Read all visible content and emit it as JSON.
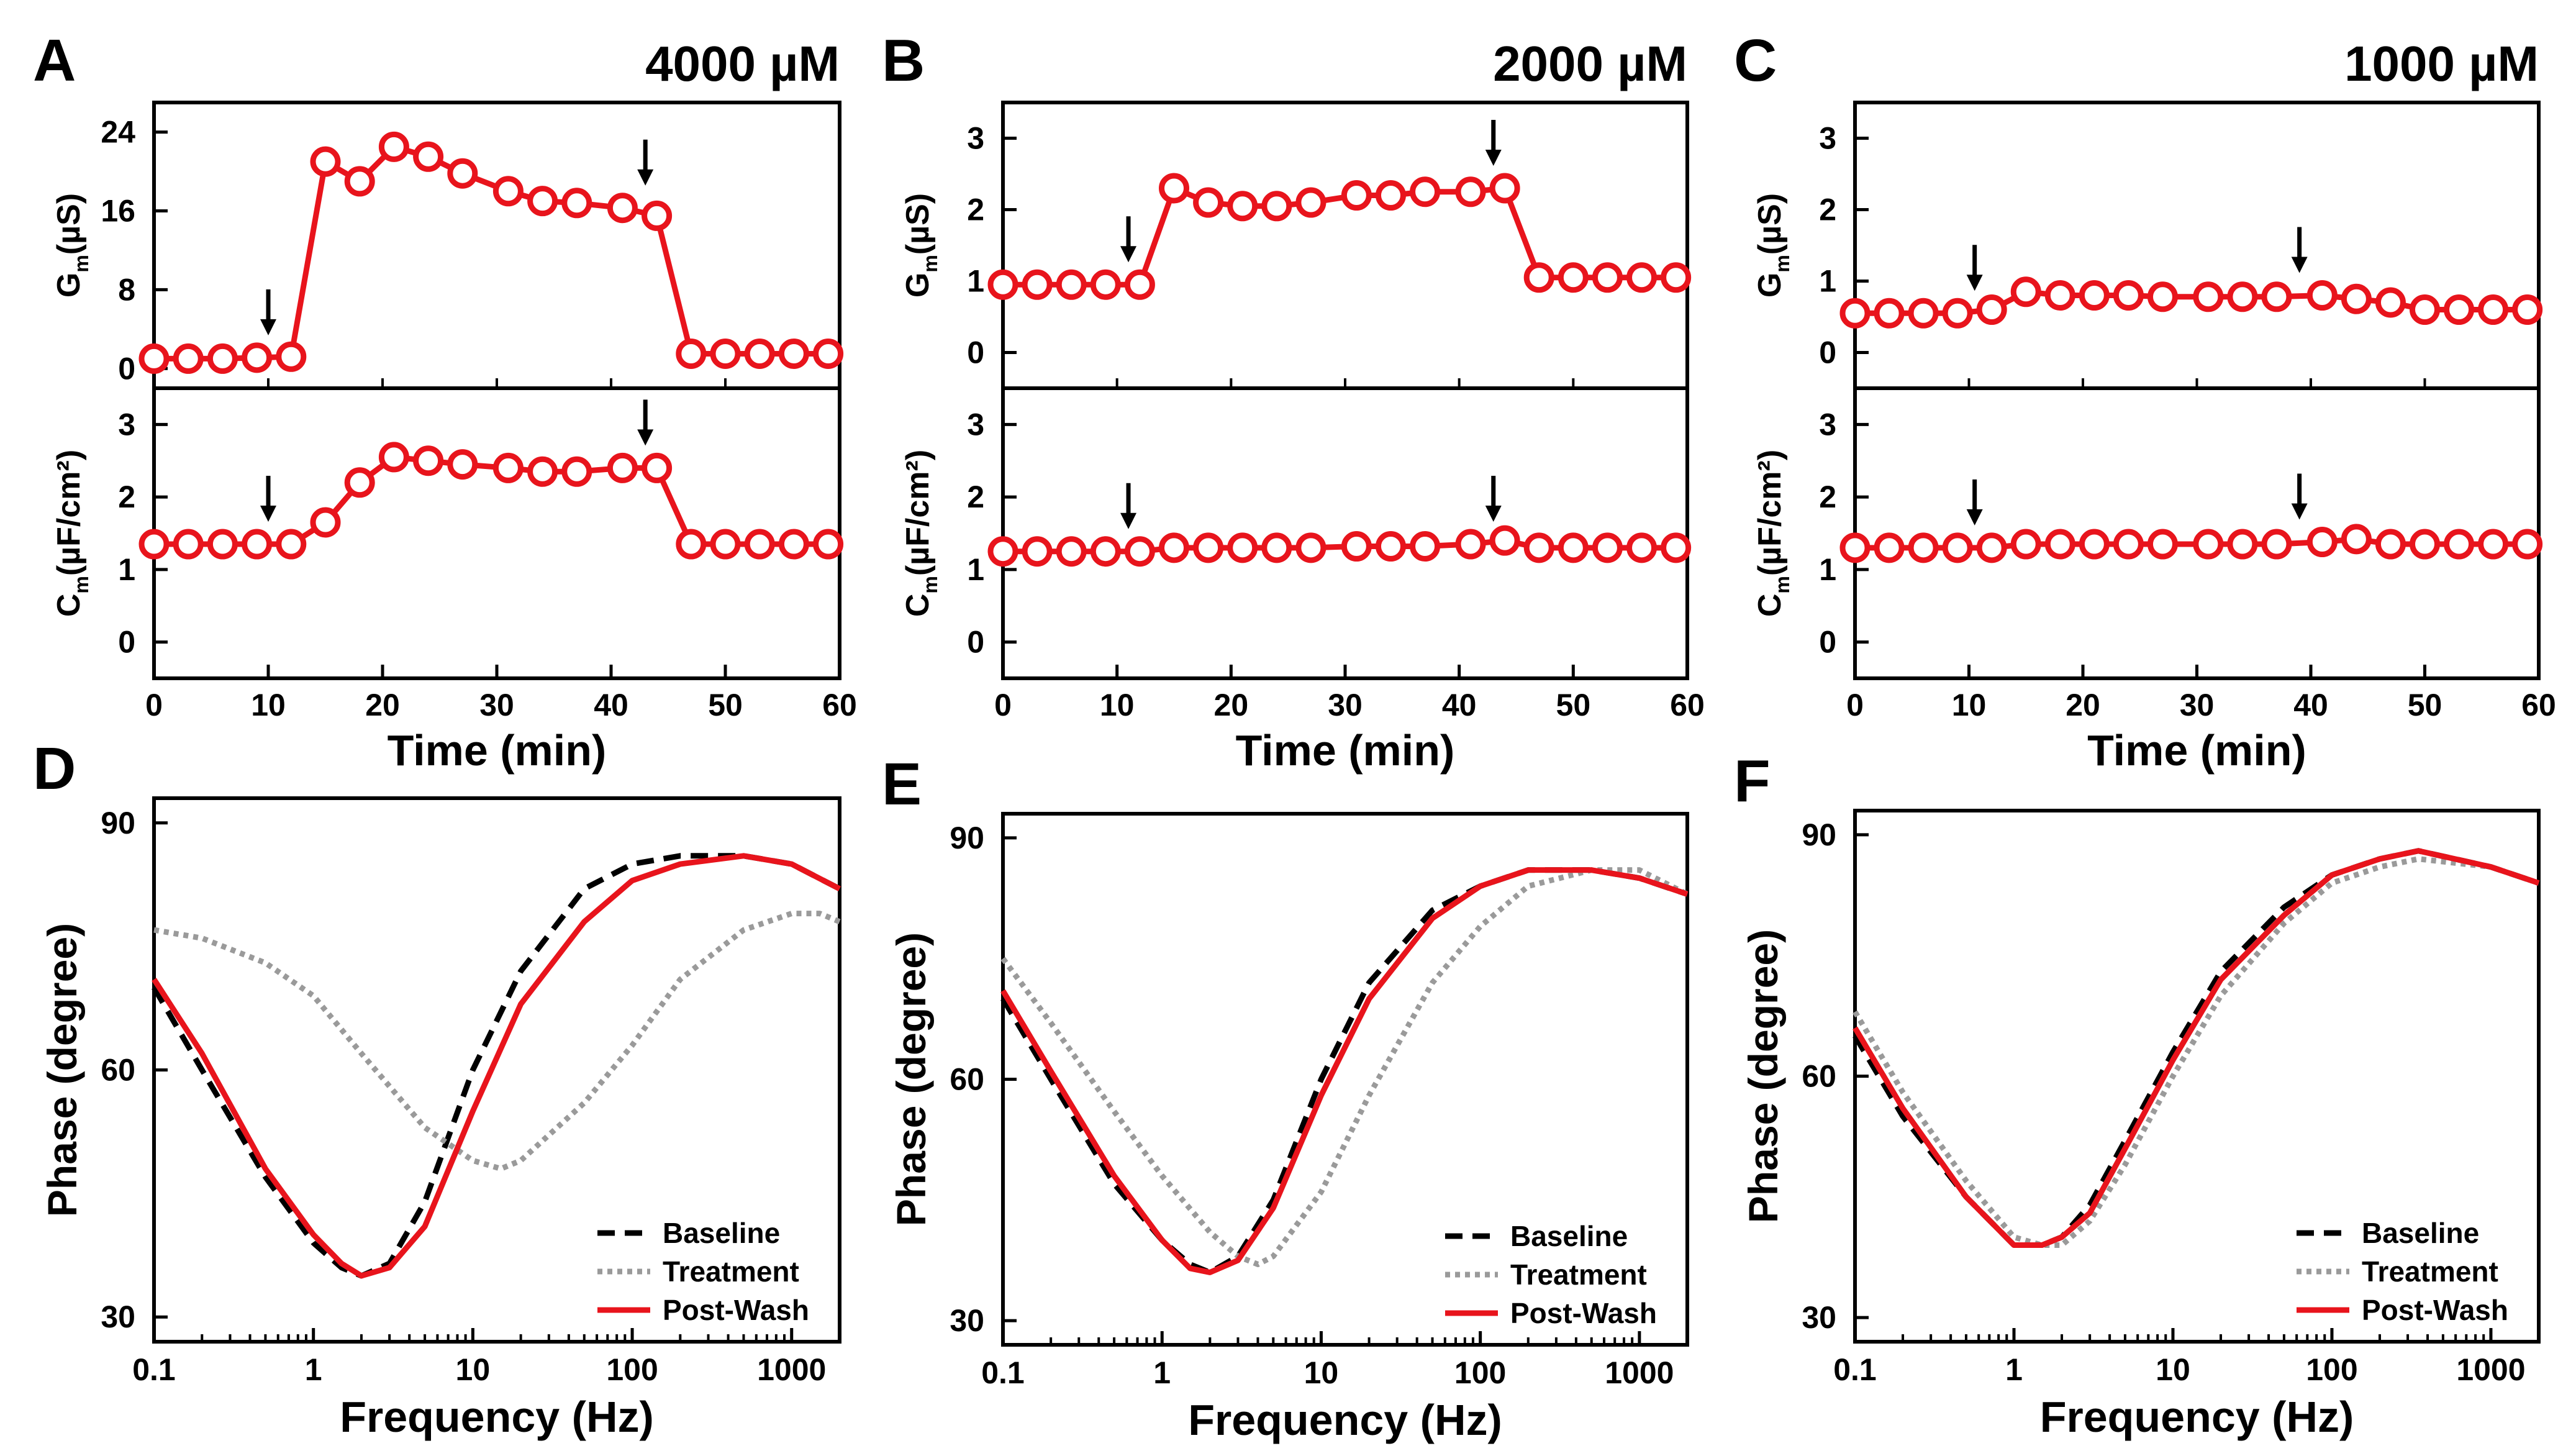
{
  "colors": {
    "red": "#e8141c",
    "black": "#000000",
    "gray": "#9a9a9a"
  },
  "chart_data": [
    {
      "id": "A",
      "letter": "A",
      "title": "4000 µM",
      "type": "line",
      "xlabel": "Time (min)",
      "xlim": [
        0,
        60
      ],
      "xticks": [
        "0",
        "10",
        "20",
        "30",
        "40",
        "50",
        "60"
      ],
      "gm": {
        "ylabel_main": "G",
        "ylabel_sub": "m",
        "ylabel_unit": "(µS)",
        "ylim": [
          -2,
          27
        ],
        "yticks": [
          {
            "v": 0,
            "t": "0"
          },
          {
            "v": 8,
            "t": "8"
          },
          {
            "v": 16,
            "t": "16"
          },
          {
            "v": 24,
            "t": "24"
          }
        ],
        "x": [
          0,
          3,
          6,
          9,
          12,
          15,
          18,
          21,
          24,
          27,
          31,
          34,
          37,
          41,
          44,
          47,
          50,
          53,
          56,
          59
        ],
        "y": [
          1.0,
          1.0,
          1.0,
          1.1,
          1.2,
          21.0,
          19.0,
          22.5,
          21.5,
          19.8,
          18.0,
          17.0,
          16.8,
          16.3,
          15.5,
          1.5,
          1.5,
          1.5,
          1.5,
          1.5
        ],
        "arrows": [
          {
            "x": 10,
            "y": 1.1
          },
          {
            "x": 43,
            "y": 16.3
          }
        ]
      },
      "cm": {
        "ylabel_main": "C",
        "ylabel_sub": "m",
        "ylabel_unit": "(µF/cm²)",
        "ylim": [
          -0.5,
          3.5
        ],
        "yticks": [
          {
            "v": 0,
            "t": "0"
          },
          {
            "v": 1,
            "t": "1"
          },
          {
            "v": 2,
            "t": "2"
          },
          {
            "v": 3,
            "t": "3"
          }
        ],
        "x": [
          0,
          3,
          6,
          9,
          12,
          15,
          18,
          21,
          24,
          27,
          31,
          34,
          37,
          41,
          44,
          47,
          50,
          53,
          56,
          59
        ],
        "y": [
          1.35,
          1.35,
          1.35,
          1.35,
          1.35,
          1.65,
          2.2,
          2.55,
          2.5,
          2.45,
          2.4,
          2.35,
          2.35,
          2.4,
          2.4,
          1.35,
          1.35,
          1.35,
          1.35,
          1.35
        ],
        "arrows": [
          {
            "x": 10,
            "y": 1.35
          },
          {
            "x": 43,
            "y": 2.4
          }
        ]
      }
    },
    {
      "id": "B",
      "letter": "B",
      "title": "2000 µM",
      "type": "line",
      "xlabel": "Time (min)",
      "xlim": [
        0,
        60
      ],
      "xticks": [
        "0",
        "10",
        "20",
        "30",
        "40",
        "50",
        "60"
      ],
      "gm": {
        "ylabel_main": "G",
        "ylabel_sub": "m",
        "ylabel_unit": "(µS)",
        "ylim": [
          -0.5,
          3.5
        ],
        "yticks": [
          {
            "v": 0,
            "t": "0"
          },
          {
            "v": 1,
            "t": "1"
          },
          {
            "v": 2,
            "t": "2"
          },
          {
            "v": 3,
            "t": "3"
          }
        ],
        "x": [
          0,
          3,
          6,
          9,
          12,
          15,
          18,
          21,
          24,
          27,
          31,
          34,
          37,
          41,
          44,
          47,
          50,
          53,
          56,
          59
        ],
        "y": [
          0.95,
          0.95,
          0.95,
          0.95,
          0.95,
          2.3,
          2.1,
          2.05,
          2.05,
          2.1,
          2.2,
          2.2,
          2.25,
          2.25,
          2.3,
          1.05,
          1.05,
          1.05,
          1.05,
          1.05
        ],
        "arrows": [
          {
            "x": 11,
            "y": 0.95
          },
          {
            "x": 43,
            "y": 2.3
          }
        ]
      },
      "cm": {
        "ylabel_main": "C",
        "ylabel_sub": "m",
        "ylabel_unit": "(µF/cm²)",
        "ylim": [
          -0.5,
          3.5
        ],
        "yticks": [
          {
            "v": 0,
            "t": "0"
          },
          {
            "v": 1,
            "t": "1"
          },
          {
            "v": 2,
            "t": "2"
          },
          {
            "v": 3,
            "t": "3"
          }
        ],
        "x": [
          0,
          3,
          6,
          9,
          12,
          15,
          18,
          21,
          24,
          27,
          31,
          34,
          37,
          41,
          44,
          47,
          50,
          53,
          56,
          59
        ],
        "y": [
          1.25,
          1.25,
          1.25,
          1.25,
          1.25,
          1.3,
          1.3,
          1.3,
          1.3,
          1.3,
          1.32,
          1.32,
          1.32,
          1.35,
          1.4,
          1.3,
          1.3,
          1.3,
          1.3,
          1.3
        ],
        "arrows": [
          {
            "x": 11,
            "y": 1.25
          },
          {
            "x": 43,
            "y": 1.35
          }
        ]
      }
    },
    {
      "id": "C",
      "letter": "C",
      "title": "1000 µM",
      "type": "line",
      "xlabel": "Time (min)",
      "xlim": [
        0,
        60
      ],
      "xticks": [
        "0",
        "10",
        "20",
        "30",
        "40",
        "50",
        "60"
      ],
      "gm": {
        "ylabel_main": "G",
        "ylabel_sub": "m",
        "ylabel_unit": "(µS)",
        "ylim": [
          -0.5,
          3.5
        ],
        "yticks": [
          {
            "v": 0,
            "t": "0"
          },
          {
            "v": 1,
            "t": "1"
          },
          {
            "v": 2,
            "t": "2"
          },
          {
            "v": 3,
            "t": "3"
          }
        ],
        "x": [
          0,
          3,
          6,
          9,
          12,
          15,
          18,
          21,
          24,
          27,
          31,
          34,
          37,
          41,
          44,
          47,
          50,
          53,
          56,
          59
        ],
        "y": [
          0.55,
          0.55,
          0.55,
          0.55,
          0.6,
          0.85,
          0.8,
          0.8,
          0.8,
          0.78,
          0.78,
          0.78,
          0.78,
          0.8,
          0.75,
          0.7,
          0.6,
          0.6,
          0.6,
          0.6
        ],
        "arrows": [
          {
            "x": 10.5,
            "y": 0.55
          },
          {
            "x": 39,
            "y": 0.8
          }
        ]
      },
      "cm": {
        "ylabel_main": "C",
        "ylabel_sub": "m",
        "ylabel_unit": "(µF/cm²)",
        "ylim": [
          -0.5,
          3.5
        ],
        "yticks": [
          {
            "v": 0,
            "t": "0"
          },
          {
            "v": 1,
            "t": "1"
          },
          {
            "v": 2,
            "t": "2"
          },
          {
            "v": 3,
            "t": "3"
          }
        ],
        "x": [
          0,
          3,
          6,
          9,
          12,
          15,
          18,
          21,
          24,
          27,
          31,
          34,
          37,
          41,
          44,
          47,
          50,
          53,
          56,
          59
        ],
        "y": [
          1.3,
          1.3,
          1.3,
          1.3,
          1.3,
          1.35,
          1.35,
          1.35,
          1.35,
          1.35,
          1.35,
          1.35,
          1.35,
          1.38,
          1.42,
          1.35,
          1.35,
          1.35,
          1.35,
          1.35
        ],
        "arrows": [
          {
            "x": 10.5,
            "y": 1.3
          },
          {
            "x": 39,
            "y": 1.38
          }
        ]
      }
    },
    {
      "id": "D",
      "letter": "D",
      "type": "line",
      "xscale": "log",
      "xlabel": "Frequency (Hz)",
      "ylabel": "Phase (degree)",
      "xlim": [
        0.1,
        2000
      ],
      "ylim": [
        27,
        93
      ],
      "xticks": [
        {
          "v": 0.1,
          "t": "0.1"
        },
        {
          "v": 1,
          "t": "1"
        },
        {
          "v": 10,
          "t": "10"
        },
        {
          "v": 100,
          "t": "100"
        },
        {
          "v": 1000,
          "t": "1000"
        }
      ],
      "yticks": [
        {
          "v": 30,
          "t": "30"
        },
        {
          "v": 60,
          "t": "60"
        },
        {
          "v": 90,
          "t": "90"
        }
      ],
      "legend": [
        "Baseline",
        "Treatment",
        "Post-Wash"
      ],
      "legend_position": "bottom-right",
      "series": [
        {
          "name": "Baseline",
          "style": "dashed",
          "x": [
            0.1,
            0.2,
            0.5,
            1,
            1.5,
            2,
            3,
            5,
            10,
            20,
            50,
            100,
            200,
            500,
            1000,
            2000
          ],
          "y": [
            70,
            60,
            47,
            39,
            36,
            35,
            36.5,
            44,
            60,
            72,
            82,
            85,
            86,
            86,
            85,
            82
          ]
        },
        {
          "name": "Treatment",
          "style": "dotted",
          "x": [
            0.1,
            0.2,
            0.5,
            1,
            2,
            5,
            10,
            15,
            20,
            50,
            100,
            200,
            500,
            1000,
            1500,
            2000
          ],
          "y": [
            77,
            76,
            73,
            69,
            62,
            53,
            49,
            48,
            49,
            56,
            63,
            71,
            77,
            79,
            79,
            78
          ]
        },
        {
          "name": "Post-Wash",
          "style": "solid",
          "x": [
            0.1,
            0.2,
            0.5,
            1,
            1.5,
            2,
            3,
            5,
            10,
            20,
            50,
            100,
            200,
            500,
            1000,
            2000
          ],
          "y": [
            71,
            62,
            48,
            40,
            36.5,
            35,
            36,
            41,
            55,
            68,
            78,
            83,
            85,
            86,
            85,
            82
          ]
        }
      ]
    },
    {
      "id": "E",
      "letter": "E",
      "type": "line",
      "xscale": "log",
      "xlabel": "Frequency (Hz)",
      "ylabel": "Phase (degree)",
      "xlim": [
        0.1,
        2000
      ],
      "ylim": [
        27,
        93
      ],
      "xticks": [
        {
          "v": 0.1,
          "t": "0.1"
        },
        {
          "v": 1,
          "t": "1"
        },
        {
          "v": 10,
          "t": "10"
        },
        {
          "v": 100,
          "t": "100"
        },
        {
          "v": 1000,
          "t": "1000"
        }
      ],
      "yticks": [
        {
          "v": 30,
          "t": "30"
        },
        {
          "v": 60,
          "t": "60"
        },
        {
          "v": 90,
          "t": "90"
        }
      ],
      "legend": [
        "Baseline",
        "Treatment",
        "Post-Wash"
      ],
      "legend_position": "bottom-right",
      "series": [
        {
          "name": "Baseline",
          "style": "dashed",
          "x": [
            0.1,
            0.2,
            0.5,
            1,
            1.5,
            2,
            3,
            5,
            10,
            20,
            50,
            100,
            200,
            500,
            1000,
            2000
          ],
          "y": [
            70,
            60,
            47,
            40,
            37,
            36,
            38,
            45,
            60,
            72,
            81,
            84,
            86,
            86,
            85,
            83
          ]
        },
        {
          "name": "Treatment",
          "style": "dotted",
          "x": [
            0.1,
            0.2,
            0.5,
            1,
            2,
            3,
            4,
            5,
            10,
            20,
            50,
            100,
            200,
            500,
            1000,
            2000
          ],
          "y": [
            75,
            67,
            56,
            48,
            41,
            38,
            37,
            38,
            46,
            58,
            72,
            79,
            84,
            86,
            86,
            83
          ]
        },
        {
          "name": "Post-Wash",
          "style": "solid",
          "x": [
            0.1,
            0.2,
            0.5,
            1,
            1.5,
            2,
            3,
            5,
            10,
            20,
            50,
            100,
            200,
            500,
            1000,
            2000
          ],
          "y": [
            71,
            61,
            48,
            40,
            36.5,
            36,
            37.5,
            44,
            58,
            70,
            80,
            84,
            86,
            86,
            85,
            83
          ]
        }
      ]
    },
    {
      "id": "F",
      "letter": "F",
      "type": "line",
      "xscale": "log",
      "xlabel": "Frequency (Hz)",
      "ylabel": "Phase (degree)",
      "xlim": [
        0.1,
        2000
      ],
      "ylim": [
        27,
        93
      ],
      "xticks": [
        {
          "v": 0.1,
          "t": "0.1"
        },
        {
          "v": 1,
          "t": "1"
        },
        {
          "v": 10,
          "t": "10"
        },
        {
          "v": 100,
          "t": "100"
        },
        {
          "v": 1000,
          "t": "1000"
        }
      ],
      "yticks": [
        {
          "v": 30,
          "t": "30"
        },
        {
          "v": 60,
          "t": "60"
        },
        {
          "v": 90,
          "t": "90"
        }
      ],
      "legend": [
        "Baseline",
        "Treatment",
        "Post-Wash"
      ],
      "legend_position": "bottom-right",
      "series": [
        {
          "name": "Baseline",
          "style": "dashed",
          "x": [
            0.1,
            0.2,
            0.5,
            1,
            1.5,
            2,
            3,
            5,
            10,
            20,
            50,
            100,
            200,
            350,
            1000,
            2000
          ],
          "y": [
            65,
            55,
            45,
            39,
            39,
            40,
            44,
            52,
            63,
            73,
            81,
            85,
            87,
            88,
            86,
            84
          ]
        },
        {
          "name": "Treatment",
          "style": "dotted",
          "x": [
            0.1,
            0.2,
            0.5,
            1,
            1.5,
            2,
            3,
            5,
            10,
            20,
            50,
            100,
            200,
            350,
            1000,
            2000
          ],
          "y": [
            68,
            58,
            47,
            40,
            39,
            39,
            42,
            49,
            60,
            70,
            79,
            84,
            86,
            87,
            86,
            84
          ]
        },
        {
          "name": "Post-Wash",
          "style": "solid",
          "x": [
            0.1,
            0.2,
            0.5,
            1,
            1.5,
            2,
            3,
            5,
            10,
            20,
            50,
            100,
            200,
            350,
            1000,
            2000
          ],
          "y": [
            66,
            56,
            45,
            39,
            39,
            40,
            43,
            51,
            62,
            72,
            80,
            85,
            87,
            88,
            86,
            84
          ]
        }
      ]
    }
  ]
}
